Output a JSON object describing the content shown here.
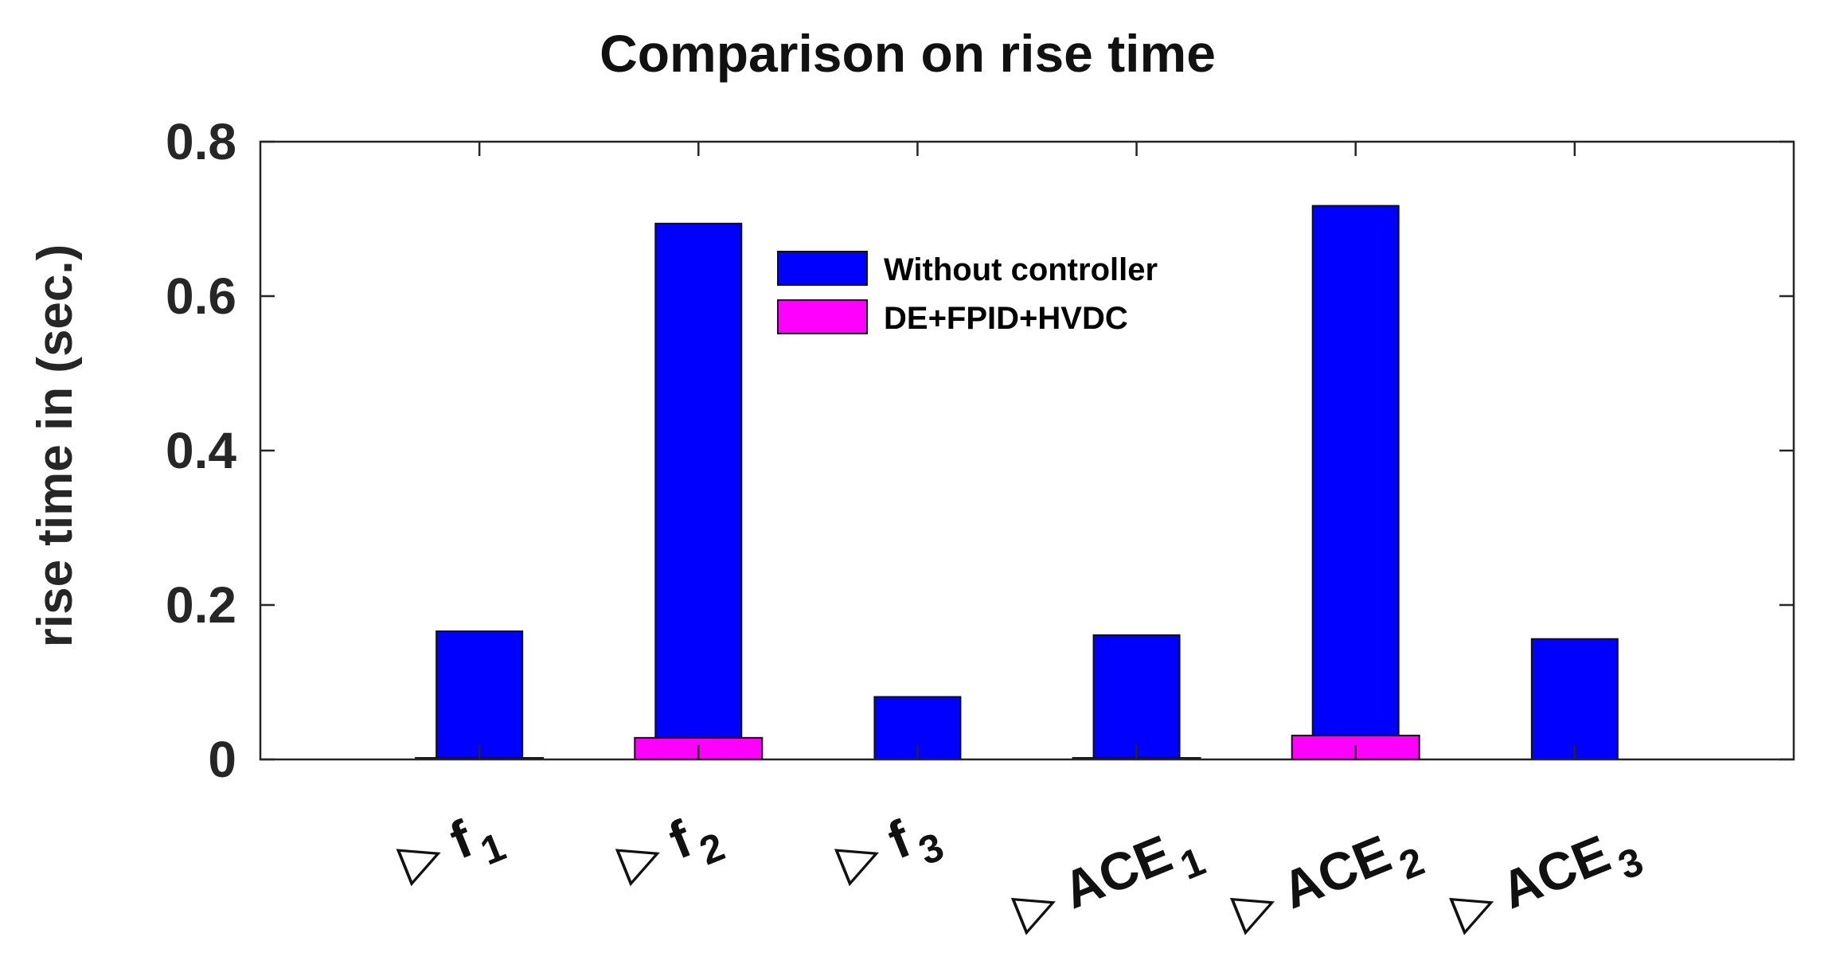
{
  "chart_data": {
    "type": "bar",
    "title": "Comparison on rise time",
    "xlabel": "",
    "ylabel": "rise time in (sec.)",
    "ylim": [
      0,
      0.8
    ],
    "yticks": [
      {
        "value": 0,
        "label": "0"
      },
      {
        "value": 0.2,
        "label": "0.2"
      },
      {
        "value": 0.4,
        "label": "0.4"
      },
      {
        "value": 0.6,
        "label": "0.6"
      },
      {
        "value": 0.8,
        "label": "0.8"
      }
    ],
    "categories": [
      {
        "prefix": "▷",
        "name": "f",
        "sub": "1"
      },
      {
        "prefix": "▷",
        "name": "f",
        "sub": "2"
      },
      {
        "prefix": "▷",
        "name": "f",
        "sub": "3"
      },
      {
        "prefix": "▷",
        "name": "ACE",
        "sub": "1"
      },
      {
        "prefix": "▷",
        "name": "ACE",
        "sub": "2"
      },
      {
        "prefix": "▷",
        "name": "ACE",
        "sub": "3"
      }
    ],
    "series": [
      {
        "name": "Without controller",
        "color": "#0000FF",
        "values": [
          0.166,
          0.694,
          0.081,
          0.161,
          0.717,
          0.156
        ]
      },
      {
        "name": "DE+FPID+HVDC",
        "color": "#FF00FF",
        "values": [
          0.002,
          0.028,
          0.0,
          0.002,
          0.031,
          0.0
        ]
      }
    ],
    "legend_position": "top-center",
    "grid": false
  }
}
